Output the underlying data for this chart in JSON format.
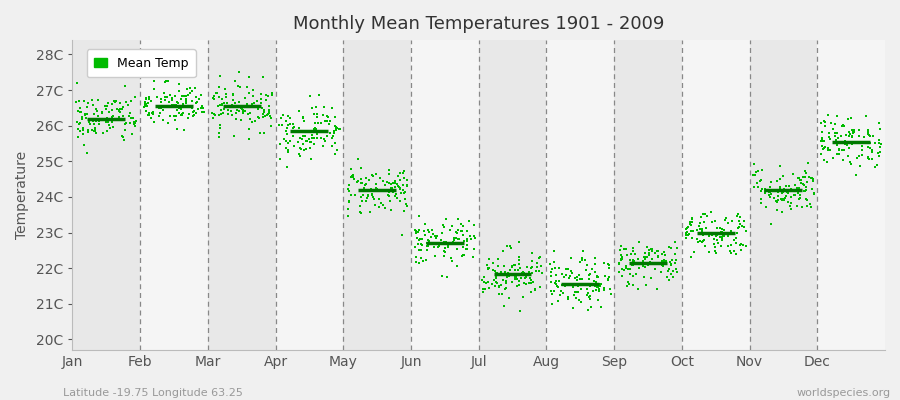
{
  "title": "Monthly Mean Temperatures 1901 - 2009",
  "ylabel": "Temperature",
  "xlabel_bottom_left": "Latitude -19.75 Longitude 63.25",
  "xlabel_bottom_right": "worldspecies.org",
  "months": [
    "Jan",
    "Feb",
    "Mar",
    "Apr",
    "May",
    "Jun",
    "Jul",
    "Aug",
    "Sep",
    "Oct",
    "Nov",
    "Dec"
  ],
  "ytick_labels": [
    "20C",
    "21C",
    "22C",
    "23C",
    "24C",
    "25C",
    "26C",
    "27C",
    "28C"
  ],
  "ytick_values": [
    20,
    21,
    22,
    23,
    24,
    25,
    26,
    27,
    28
  ],
  "ylim": [
    19.7,
    28.4
  ],
  "mean_temps": [
    26.2,
    26.55,
    26.55,
    25.85,
    24.2,
    22.7,
    21.85,
    21.55,
    22.15,
    23.0,
    24.2,
    25.55
  ],
  "dot_color": "#00bb00",
  "mean_color": "#007700",
  "background_color": "#f0f0f0",
  "plot_bg_color": "#f0f0f0",
  "legend_label": "Mean Temp",
  "n_years": 109,
  "seed": 42,
  "spreads": [
    0.95,
    0.85,
    0.9,
    1.0,
    0.95,
    0.85,
    0.95,
    0.95,
    0.85,
    0.85,
    0.9,
    0.95
  ]
}
